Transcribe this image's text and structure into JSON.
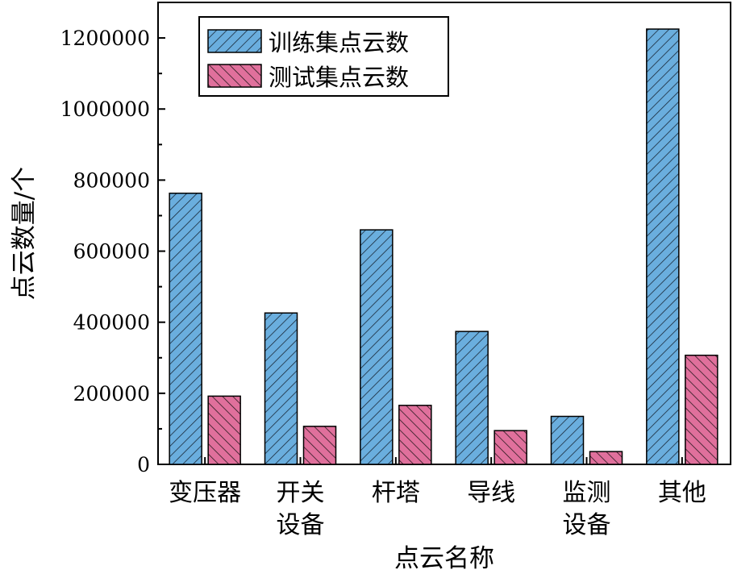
{
  "chart_data": {
    "type": "bar",
    "title": "",
    "xlabel": "点云名称",
    "ylabel": "点云数量/个",
    "categories": [
      [
        "变压器"
      ],
      [
        "开关",
        "设备"
      ],
      [
        "杆塔"
      ],
      [
        "导线"
      ],
      [
        "监测",
        "设备"
      ],
      [
        "其他"
      ]
    ],
    "series": [
      {
        "name": "训练集点云数",
        "color": "#6aaede",
        "pattern": "diagonal-up",
        "values": [
          763000,
          426000,
          660000,
          374000,
          135000,
          1225000
        ]
      },
      {
        "name": "测试集点云数",
        "color": "#e0709c",
        "pattern": "diagonal-down",
        "values": [
          192000,
          107000,
          166000,
          95000,
          36000,
          307000
        ]
      }
    ],
    "ylim": [
      0,
      1300000
    ],
    "yticks": [
      0,
      200000,
      400000,
      600000,
      800000,
      1000000,
      1200000
    ],
    "ytick_labels": [
      "0",
      "200000",
      "400000",
      "600000",
      "800000",
      "1000000",
      "1200000"
    ],
    "grid": false,
    "legend_position": "top-left"
  }
}
